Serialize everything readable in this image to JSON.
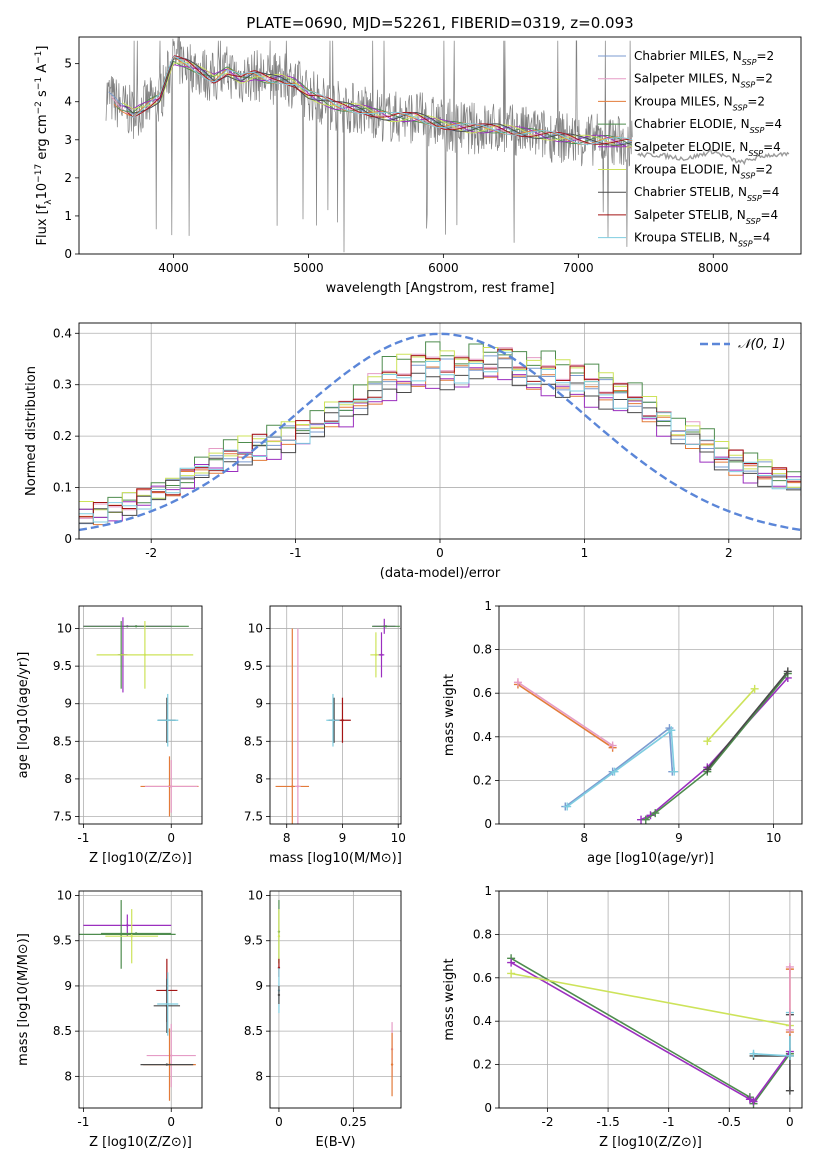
{
  "figure_title": "PLATE=0690, MJD=52261, FIBERID=0319, z=0.093",
  "colors": {
    "chabrier_miles": "#7b9bd0",
    "salpeter_miles": "#e59cc6",
    "kroupa_miles": "#e37b3a",
    "chabrier_elodie": "#4e8c4e",
    "salpeter_elodie": "#9b2fbf",
    "kroupa_elodie": "#cde35a",
    "chabrier_stelib": "#4a4a4a",
    "salpeter_stelib": "#a31515",
    "kroupa_stelib": "#7fcde0",
    "spectrum": "#808080",
    "gaussian": "#5b86d8",
    "grid": "#b0b0b0"
  },
  "legend_models": [
    {
      "key": "chabrier_miles",
      "pre": "Chabrier MILES, N",
      "sub": "SSP",
      "post": "=2"
    },
    {
      "key": "salpeter_miles",
      "pre": "Salpeter MILES, N",
      "sub": "SSP",
      "post": "=2"
    },
    {
      "key": "kroupa_miles",
      "pre": "Kroupa MILES, N",
      "sub": "SSP",
      "post": "=2"
    },
    {
      "key": "chabrier_elodie",
      "pre": "Chabrier ELODIE, N",
      "sub": "SSP",
      "post": "=4"
    },
    {
      "key": "salpeter_elodie",
      "pre": "Salpeter ELODIE, N",
      "sub": "SSP",
      "post": "=4"
    },
    {
      "key": "kroupa_elodie",
      "pre": "Kroupa ELODIE, N",
      "sub": "SSP",
      "post": "=2"
    },
    {
      "key": "chabrier_stelib",
      "pre": "Chabrier STELIB, N",
      "sub": "SSP",
      "post": "=4"
    },
    {
      "key": "salpeter_stelib",
      "pre": "Salpeter STELIB, N",
      "sub": "SSP",
      "post": "=4"
    },
    {
      "key": "kroupa_stelib",
      "pre": "Kroupa STELIB, N",
      "sub": "SSP",
      "post": "=4"
    }
  ],
  "chart_data": [
    {
      "id": "spectrum",
      "type": "line",
      "title": "PLATE=0690, MJD=52261, FIBERID=0319, z=0.093",
      "xlabel": "wavelength [Angstrom, rest frame]",
      "ylabel": "Flux [f_λ 10^-17 erg cm^-2 s^-1 A^-1]",
      "xlim": [
        3300,
        8650
      ],
      "ylim": [
        0,
        5.7
      ],
      "xticks": [
        4000,
        5000,
        6000,
        7000,
        8000
      ],
      "yticks": [
        0,
        1,
        2,
        3,
        4,
        5
      ],
      "grid": false,
      "legend": "upper right",
      "spectrum_knots": {
        "x": [
          3500,
          3600,
          3700,
          3800,
          3900,
          4000,
          4100,
          4200,
          4300,
          4400,
          4500,
          4600,
          4700,
          4800,
          4900,
          5000,
          5200,
          5400,
          5600,
          5800,
          6000,
          6200,
          6400,
          6600,
          6800,
          7000,
          7200,
          7400
        ],
        "y": [
          4.2,
          3.9,
          3.7,
          3.9,
          4.1,
          5.1,
          5.0,
          4.8,
          4.6,
          4.8,
          4.6,
          4.7,
          4.6,
          4.6,
          4.5,
          4.2,
          3.9,
          3.8,
          3.6,
          3.6,
          3.4,
          3.3,
          3.3,
          3.2,
          3.1,
          3.0,
          3.0,
          2.9
        ]
      },
      "extension_knots": {
        "x": [
          7440,
          7600,
          7800,
          8000,
          8200,
          8400,
          8560
        ],
        "y": [
          2.6,
          2.6,
          2.5,
          2.7,
          2.4,
          2.6,
          2.6
        ]
      }
    },
    {
      "id": "residuals",
      "type": "line",
      "xlabel": "(data-model)/error",
      "ylabel": "Normed distribution",
      "xlim": [
        -2.5,
        2.5
      ],
      "ylim": [
        0,
        0.42
      ],
      "xticks": [
        -2,
        -1,
        0,
        1,
        2
      ],
      "yticks": [
        0.0,
        0.1,
        0.2,
        0.3,
        0.4
      ],
      "grid": true,
      "legend": "upper right",
      "gaussian_label": "𝒩(0, 1)",
      "bin_width": 0.1,
      "histogram": [
        0.05,
        0.05,
        0.06,
        0.07,
        0.08,
        0.09,
        0.1,
        0.12,
        0.14,
        0.15,
        0.16,
        0.17,
        0.18,
        0.19,
        0.2,
        0.21,
        0.22,
        0.24,
        0.25,
        0.27,
        0.29,
        0.31,
        0.32,
        0.33,
        0.34,
        0.33,
        0.33,
        0.34,
        0.34,
        0.35,
        0.33,
        0.32,
        0.32,
        0.31,
        0.31,
        0.3,
        0.29,
        0.28,
        0.27,
        0.25,
        0.23,
        0.21,
        0.2,
        0.18,
        0.16,
        0.15,
        0.14,
        0.13,
        0.12,
        0.11,
        0.1,
        0.09,
        0.08,
        0.07,
        0.06,
        0.05,
        0.05,
        0.05,
        0.04,
        0.04,
        0.04,
        0.04,
        0.03,
        0.03,
        0.03,
        0.03,
        0.03,
        0.02,
        0.02,
        0.02,
        0.02,
        0.02,
        0.02,
        0.02,
        0.02,
        0.02,
        0.02,
        0.02,
        0.02,
        0.02,
        0.02,
        0.02,
        0.02,
        0.02,
        0.02,
        0.02,
        0.02,
        0.02,
        0.02,
        0.02,
        0.02,
        0.02,
        0.02,
        0.02,
        0.02,
        0.02,
        0.02,
        0.02,
        0.02,
        0.02
      ],
      "histogram_start": -2.5,
      "histogram_note": "",
      "model_histograms_variation": [
        0.0,
        0.01,
        -0.01,
        0.02,
        -0.02,
        0.015,
        -0.015,
        0.005,
        -0.005
      ]
    },
    {
      "id": "age_vs_Z",
      "type": "scatter",
      "xlabel": "Z [log10(Z/Z⊙)]",
      "ylabel": "age [log10(age/yr)]",
      "xlim": [
        -1.05,
        0.35
      ],
      "ylim": [
        7.4,
        10.3
      ],
      "xticks": [
        -1,
        0
      ],
      "yticks": [
        7.5,
        8.0,
        8.5,
        9.0,
        9.5,
        10.0
      ],
      "grid": true,
      "points": [
        {
          "model": "salpeter_elodie",
          "x": -0.5,
          "y": 10.03,
          "xerr": 0.5,
          "yerr": 0.0
        },
        {
          "model": "chabrier_elodie",
          "x": -0.4,
          "y": 10.03,
          "xerr": 0.6,
          "yerr": 0.0
        },
        {
          "model": "salpeter_elodie",
          "x": -0.55,
          "y": 9.65,
          "xerr": 0.05,
          "yerr": 0.5
        },
        {
          "model": "chabrier_elodie",
          "x": -0.57,
          "y": 9.65,
          "xerr": 0.04,
          "yerr": 0.45
        },
        {
          "model": "kroupa_elodie",
          "x": -0.3,
          "y": 9.65,
          "xerr": 0.55,
          "yerr": 0.45
        },
        {
          "model": "chabrier_stelib",
          "x": -0.05,
          "y": 8.78,
          "xerr": 0.1,
          "yerr": 0.3
        },
        {
          "model": "kroupa_stelib",
          "x": -0.04,
          "y": 8.78,
          "xerr": 0.12,
          "yerr": 0.35
        },
        {
          "model": "kroupa_miles",
          "x": -0.02,
          "y": 7.9,
          "xerr": 0.33,
          "yerr": 0.4
        },
        {
          "model": "salpeter_miles",
          "x": 0.0,
          "y": 7.9,
          "xerr": 0.3,
          "yerr": 0.35
        }
      ]
    },
    {
      "id": "age_vs_mass",
      "type": "scatter",
      "xlabel": "mass [log10(M/M⊙)]",
      "ylabel": "",
      "xlim": [
        7.7,
        10.05
      ],
      "ylim": [
        7.4,
        10.3
      ],
      "xticks": [
        8,
        9,
        10
      ],
      "yticks": [
        7.5,
        8.0,
        8.5,
        9.0,
        9.5,
        10.0
      ],
      "grid": true,
      "points": [
        {
          "model": "salpeter_elodie",
          "x": 9.75,
          "y": 10.03,
          "xerr": 0.2,
          "yerr": 0.1
        },
        {
          "model": "chabrier_elodie",
          "x": 9.78,
          "y": 10.03,
          "xerr": 0.25,
          "yerr": 0.0
        },
        {
          "model": "kroupa_elodie",
          "x": 9.6,
          "y": 9.65,
          "xerr": 0.1,
          "yerr": 0.3
        },
        {
          "model": "salpeter_elodie",
          "x": 9.7,
          "y": 9.65,
          "xerr": 0.05,
          "yerr": 0.3
        },
        {
          "model": "chabrier_stelib",
          "x": 8.85,
          "y": 8.78,
          "xerr": 0.1,
          "yerr": 0.3
        },
        {
          "model": "salpeter_stelib",
          "x": 9.0,
          "y": 8.78,
          "xerr": 0.15,
          "yerr": 0.3
        },
        {
          "model": "kroupa_stelib",
          "x": 8.83,
          "y": 8.78,
          "xerr": 0.12,
          "yerr": 0.35
        },
        {
          "model": "kroupa_miles",
          "x": 8.1,
          "y": 7.9,
          "xerr": 0.3,
          "yerr": 2.1
        },
        {
          "model": "salpeter_miles",
          "x": 8.2,
          "y": 7.9,
          "xerr": 0.05,
          "yerr": 2.1
        }
      ]
    },
    {
      "id": "mass_weight_vs_age",
      "type": "line",
      "xlabel": "age  [log10(age/yr)]",
      "ylabel": "mass weight",
      "xlim": [
        7.1,
        10.3
      ],
      "ylim": [
        0.0,
        1.0
      ],
      "xticks": [
        8,
        9,
        10
      ],
      "yticks": [
        0.0,
        0.2,
        0.4,
        0.6,
        0.8,
        1.0
      ],
      "grid": true,
      "series": [
        {
          "model": "kroupa_miles",
          "x": [
            7.3,
            8.3
          ],
          "y": [
            0.64,
            0.35
          ]
        },
        {
          "model": "salpeter_miles",
          "x": [
            7.3,
            8.3
          ],
          "y": [
            0.65,
            0.36
          ]
        },
        {
          "model": "chabrier_miles",
          "x": [
            7.8,
            8.3,
            8.9,
            8.93
          ],
          "y": [
            0.08,
            0.24,
            0.44,
            0.24
          ]
        },
        {
          "model": "kroupa_stelib",
          "x": [
            7.82,
            8.32,
            8.92,
            8.95
          ],
          "y": [
            0.08,
            0.24,
            0.43,
            0.24
          ]
        },
        {
          "model": "kroupa_elodie",
          "x": [
            9.3,
            9.8
          ],
          "y": [
            0.38,
            0.62
          ]
        },
        {
          "model": "salpeter_elodie",
          "x": [
            8.6,
            8.7,
            9.3,
            10.15
          ],
          "y": [
            0.02,
            0.04,
            0.26,
            0.67
          ]
        },
        {
          "model": "chabrier_elodie",
          "x": [
            8.65,
            8.75,
            9.3,
            10.15
          ],
          "y": [
            0.02,
            0.05,
            0.24,
            0.69
          ]
        },
        {
          "model": "chabrier_stelib",
          "x": [
            9.3,
            10.15
          ],
          "y": [
            0.25,
            0.7
          ]
        }
      ]
    },
    {
      "id": "mass_vs_Z",
      "type": "scatter",
      "xlabel": "Z [log10(Z/Z⊙)]",
      "ylabel": "mass [log10(M/M⊙)]",
      "xlim": [
        -1.05,
        0.35
      ],
      "ylim": [
        7.65,
        10.05
      ],
      "xticks": [
        -1,
        0
      ],
      "yticks": [
        8.0,
        8.5,
        9.0,
        9.5,
        10.0
      ],
      "grid": true,
      "points": [
        {
          "model": "salpeter_elodie",
          "x": -0.5,
          "y": 9.67,
          "xerr": 0.5,
          "yerr": 0.12
        },
        {
          "model": "chabrier_elodie",
          "x": -0.57,
          "y": 9.57,
          "xerr": 0.62,
          "yerr": 0.38
        },
        {
          "model": "kroupa_elodie",
          "x": -0.45,
          "y": 9.55,
          "xerr": 0.3,
          "yerr": 0.3
        },
        {
          "model": "chabrier_elodie",
          "x": -0.4,
          "y": 9.58,
          "xerr": 0.4,
          "yerr": 0.0
        },
        {
          "model": "salpeter_stelib",
          "x": -0.05,
          "y": 8.95,
          "xerr": 0.12,
          "yerr": 0.35
        },
        {
          "model": "chabrier_stelib",
          "x": -0.05,
          "y": 8.78,
          "xerr": 0.15,
          "yerr": 0.3
        },
        {
          "model": "kroupa_stelib",
          "x": -0.04,
          "y": 8.8,
          "xerr": 0.12,
          "yerr": 0.35
        },
        {
          "model": "salpeter_miles",
          "x": 0.0,
          "y": 8.23,
          "xerr": 0.28,
          "yerr": 0.35
        },
        {
          "model": "kroupa_miles",
          "x": -0.02,
          "y": 8.13,
          "xerr": 0.3,
          "yerr": 0.4
        },
        {
          "model": "chabrier_stelib",
          "x": -0.05,
          "y": 8.13,
          "xerr": 0.3,
          "yerr": 0.0
        }
      ]
    },
    {
      "id": "mass_vs_ebv",
      "type": "scatter",
      "xlabel": "E(B-V)",
      "ylabel": "",
      "xlim": [
        -0.03,
        0.41
      ],
      "ylim": [
        7.65,
        10.05
      ],
      "xticks": [
        0.0,
        0.25
      ],
      "yticks": [
        8.0,
        8.5,
        9.0,
        9.5,
        10.0
      ],
      "grid": true,
      "points": [
        {
          "model": "chabrier_elodie",
          "x": 0.0,
          "y": 9.6,
          "xerr": 0.0,
          "yerr": 0.35
        },
        {
          "model": "kroupa_elodie",
          "x": 0.0,
          "y": 9.55,
          "xerr": 0.0,
          "yerr": 0.3
        },
        {
          "model": "salpeter_stelib",
          "x": 0.0,
          "y": 9.2,
          "xerr": 0.0,
          "yerr": 0.1
        },
        {
          "model": "kroupa_stelib",
          "x": 0.0,
          "y": 8.95,
          "xerr": 0.0,
          "yerr": 0.25
        },
        {
          "model": "chabrier_stelib",
          "x": 0.0,
          "y": 8.9,
          "xerr": 0.0,
          "yerr": 0.1
        },
        {
          "model": "salpeter_miles",
          "x": 0.38,
          "y": 8.3,
          "xerr": 0.0,
          "yerr": 0.3
        },
        {
          "model": "kroupa_miles",
          "x": 0.38,
          "y": 8.13,
          "xerr": 0.0,
          "yerr": 0.35
        }
      ]
    },
    {
      "id": "mass_weight_vs_Z",
      "type": "line",
      "xlabel": "Z [log10(Z/Z⊙)]",
      "ylabel": "mass weight",
      "xlim": [
        -2.4,
        0.1
      ],
      "ylim": [
        0.0,
        1.0
      ],
      "xticks": [
        -2.0,
        -1.5,
        -1.0,
        -0.5,
        0.0
      ],
      "yticks": [
        0.0,
        0.2,
        0.4,
        0.6,
        0.8,
        1.0
      ],
      "grid": true,
      "series": [
        {
          "model": "chabrier_elodie",
          "x": [
            -2.3,
            -0.33,
            -0.3,
            0.0
          ],
          "y": [
            0.69,
            0.05,
            0.02,
            0.25
          ]
        },
        {
          "model": "salpeter_elodie",
          "x": [
            -2.3,
            -0.33,
            -0.3,
            0.0
          ],
          "y": [
            0.67,
            0.04,
            0.03,
            0.26
          ]
        },
        {
          "model": "kroupa_elodie",
          "x": [
            -2.3,
            0.0
          ],
          "y": [
            0.62,
            0.38
          ]
        },
        {
          "model": "chabrier_stelib",
          "x": [
            -0.3,
            0.0,
            0.0,
            0.0
          ],
          "y": [
            0.24,
            0.24,
            0.43,
            0.08
          ]
        },
        {
          "model": "kroupa_stelib",
          "x": [
            -0.3,
            0.0,
            0.0
          ],
          "y": [
            0.25,
            0.24,
            0.44
          ]
        },
        {
          "model": "kroupa_miles",
          "x": [
            0.0,
            0.0
          ],
          "y": [
            0.64,
            0.35
          ]
        },
        {
          "model": "salpeter_miles",
          "x": [
            0.0,
            0.0
          ],
          "y": [
            0.65,
            0.36
          ]
        }
      ]
    }
  ]
}
